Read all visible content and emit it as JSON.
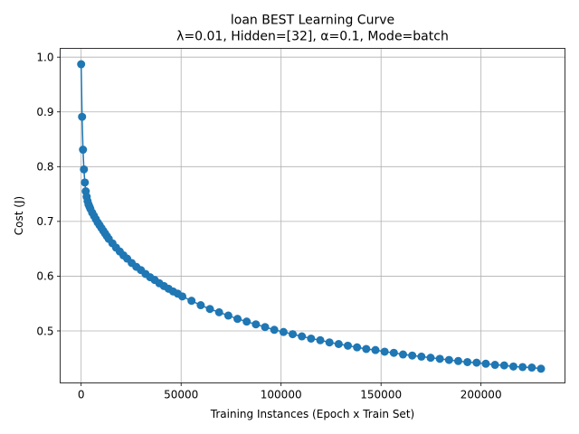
{
  "chart_data": {
    "type": "line",
    "title": "loan BEST Learning Curve",
    "subtitle": "λ=0.01,  Hidden=[32], α=0.1, Mode=batch",
    "xlabel": "Training Instances (Epoch x Train Set)",
    "ylabel": "Cost (J)",
    "xlim": [
      -10500,
      242000
    ],
    "ylim": [
      0.405,
      1.016
    ],
    "xticks": [
      0,
      50000,
      100000,
      150000,
      200000
    ],
    "xtick_labels": [
      "0",
      "50000",
      "100000",
      "150000",
      "200000"
    ],
    "yticks": [
      0.5,
      0.6,
      0.7,
      0.8,
      0.9,
      1.0
    ],
    "ytick_labels": [
      "0.5",
      "0.6",
      "0.7",
      "0.8",
      "0.9",
      "1.0"
    ],
    "grid": true,
    "series": [
      {
        "color": "#1f77b4",
        "marker": "circle",
        "x": [
          0,
          460,
          920,
          1380,
          1840,
          2300,
          2760,
          3220,
          3680,
          4140,
          4600,
          5520,
          6440,
          7360,
          8280,
          9200,
          10120,
          11040,
          11960,
          12880,
          13800,
          15640,
          17480,
          19320,
          21160,
          23000,
          25300,
          27600,
          29900,
          32200,
          34500,
          36800,
          39100,
          41400,
          43700,
          46000,
          48300,
          50600,
          55200,
          59800,
          64400,
          69000,
          73600,
          78200,
          82800,
          87400,
          92000,
          96600,
          101200,
          105800,
          110400,
          115000,
          119600,
          124200,
          128800,
          133400,
          138000,
          142600,
          147200,
          151800,
          156400,
          161000,
          165600,
          170200,
          174800,
          179400,
          184000,
          188600,
          193200,
          197800,
          202400,
          207000,
          211600,
          216200,
          220800,
          225400,
          230000
        ],
        "y": [
          0.987,
          0.891,
          0.831,
          0.795,
          0.771,
          0.755,
          0.745,
          0.737,
          0.731,
          0.727,
          0.723,
          0.716,
          0.71,
          0.704,
          0.698,
          0.693,
          0.688,
          0.683,
          0.678,
          0.673,
          0.668,
          0.66,
          0.652,
          0.645,
          0.638,
          0.632,
          0.624,
          0.617,
          0.611,
          0.604,
          0.598,
          0.593,
          0.587,
          0.582,
          0.577,
          0.572,
          0.568,
          0.563,
          0.555,
          0.547,
          0.54,
          0.534,
          0.528,
          0.522,
          0.517,
          0.512,
          0.507,
          0.502,
          0.498,
          0.494,
          0.49,
          0.486,
          0.483,
          0.479,
          0.476,
          0.473,
          0.47,
          0.467,
          0.465,
          0.462,
          0.46,
          0.457,
          0.455,
          0.453,
          0.451,
          0.449,
          0.447,
          0.445,
          0.443,
          0.442,
          0.44,
          0.438,
          0.437,
          0.435,
          0.434,
          0.433,
          0.431
        ]
      }
    ]
  }
}
